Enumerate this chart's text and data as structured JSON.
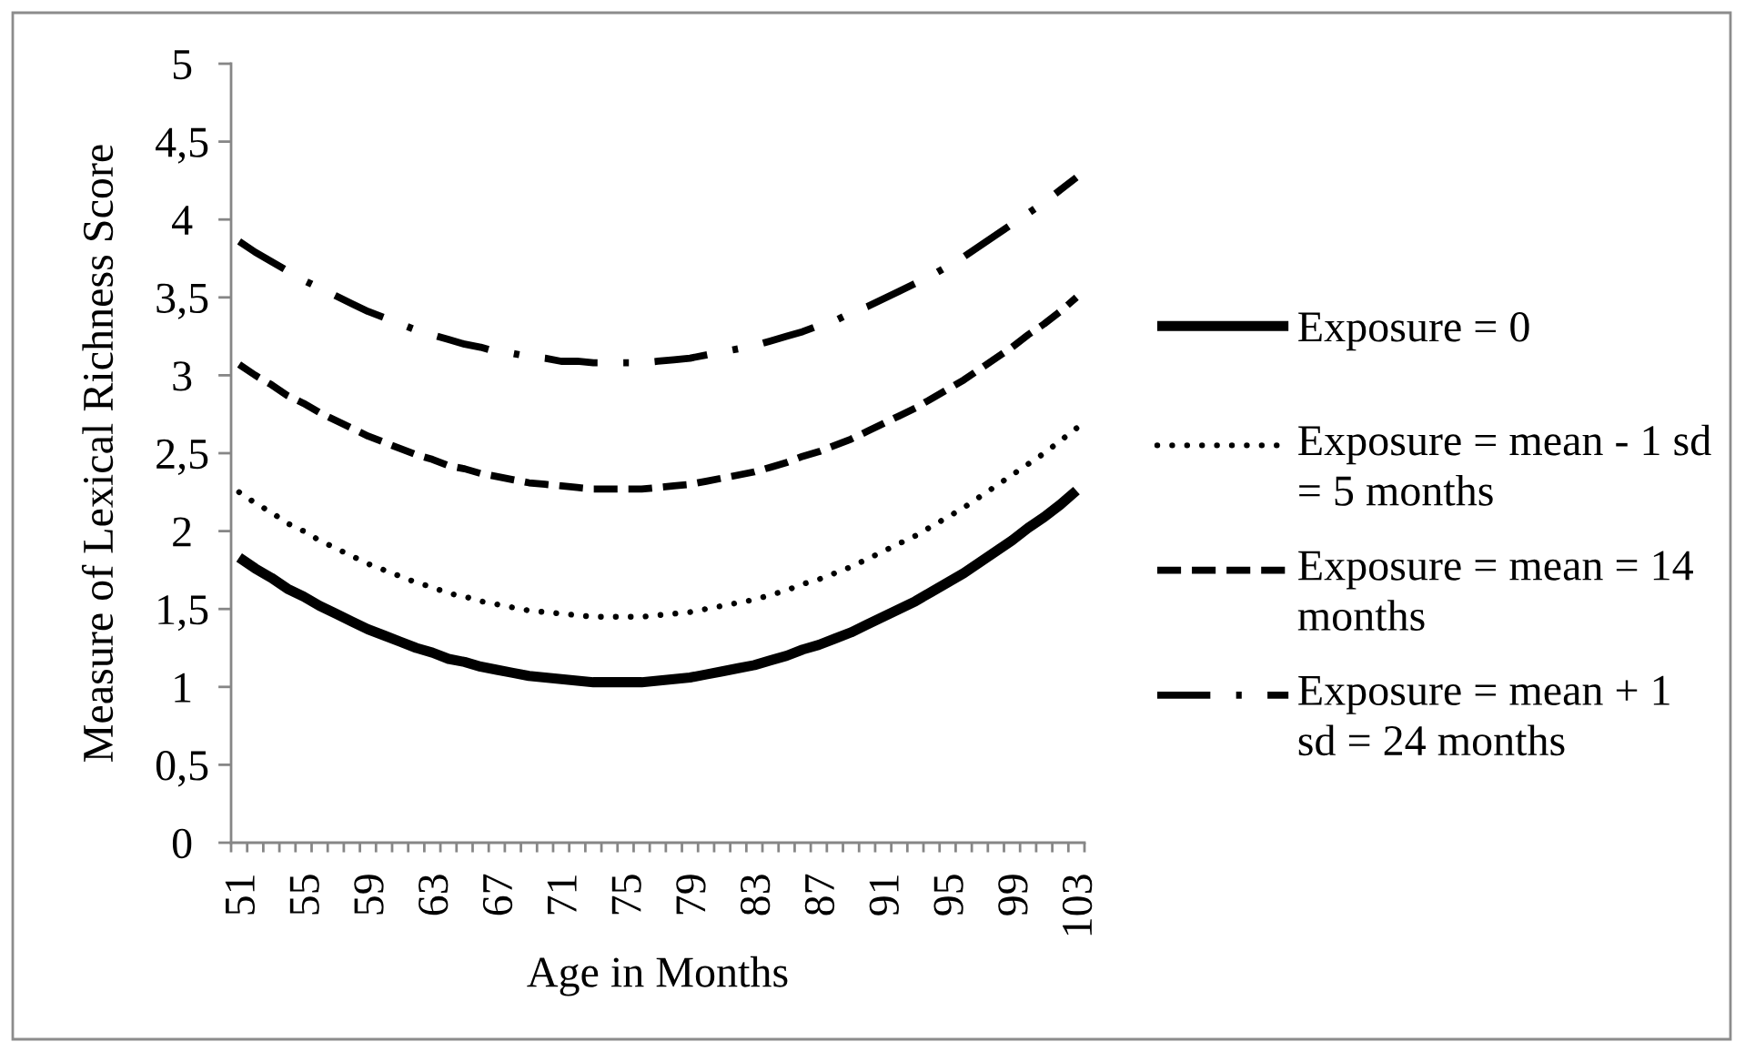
{
  "chart_data": {
    "type": "line",
    "xlabel": "Age in Months",
    "ylabel": "Measure of Lexical Richness Score",
    "categories": [
      "51",
      null,
      null,
      null,
      "55",
      null,
      null,
      null,
      "59",
      null,
      null,
      null,
      "63",
      null,
      null,
      null,
      "67",
      null,
      null,
      null,
      "71",
      null,
      null,
      null,
      "75",
      null,
      null,
      null,
      "79",
      null,
      null,
      null,
      "83",
      null,
      null,
      null,
      "87",
      null,
      null,
      null,
      "91",
      null,
      null,
      null,
      "95",
      null,
      null,
      null,
      "99",
      null,
      null,
      null,
      "103"
    ],
    "ylim": [
      0,
      5
    ],
    "yticks": [
      0,
      {
        "value": 0.5,
        "label": "0,5"
      },
      1,
      {
        "value": 1.5,
        "label": "1,5"
      },
      2,
      {
        "value": 2.5,
        "label": "2,5"
      },
      3,
      {
        "value": 3.5,
        "label": "3,5"
      },
      4,
      {
        "value": 4.5,
        "label": "4,5"
      },
      5
    ],
    "legend": "right",
    "series": [
      {
        "name": "Exposure = 0",
        "color": "#000000",
        "line_style": "solid",
        "values": [
          1.83,
          1.76,
          1.7,
          1.63,
          1.58,
          1.52,
          1.47,
          1.42,
          1.37,
          1.33,
          1.29,
          1.25,
          1.22,
          1.18,
          1.16,
          1.13,
          1.11,
          1.09,
          1.07,
          1.06,
          1.05,
          1.04,
          1.03,
          1.03,
          1.03,
          1.03,
          1.04,
          1.05,
          1.06,
          1.08,
          1.1,
          1.12,
          1.14,
          1.17,
          1.2,
          1.24,
          1.27,
          1.31,
          1.35,
          1.4,
          1.45,
          1.5,
          1.55,
          1.61,
          1.67,
          1.73,
          1.8,
          1.87,
          1.94,
          2.02,
          2.09,
          2.17,
          2.26
        ]
      },
      {
        "name": "Exposure = mean - 1 sd = 5 months",
        "color": "#000000",
        "line_style": "dotted",
        "values": [
          2.25,
          2.18,
          2.12,
          2.05,
          2.0,
          1.94,
          1.89,
          1.84,
          1.79,
          1.75,
          1.71,
          1.67,
          1.64,
          1.6,
          1.58,
          1.55,
          1.53,
          1.51,
          1.49,
          1.48,
          1.47,
          1.46,
          1.45,
          1.45,
          1.45,
          1.45,
          1.46,
          1.47,
          1.48,
          1.5,
          1.52,
          1.54,
          1.56,
          1.59,
          1.62,
          1.66,
          1.69,
          1.73,
          1.77,
          1.82,
          1.87,
          1.92,
          1.97,
          2.03,
          2.09,
          2.15,
          2.22,
          2.29,
          2.36,
          2.43,
          2.5,
          2.58,
          2.66
        ]
      },
      {
        "name": "Exposure = mean = 14 months",
        "color": "#000000",
        "line_style": "dashed",
        "values": [
          3.07,
          3.0,
          2.94,
          2.87,
          2.82,
          2.76,
          2.71,
          2.66,
          2.61,
          2.57,
          2.53,
          2.49,
          2.46,
          2.42,
          2.4,
          2.37,
          2.35,
          2.33,
          2.31,
          2.3,
          2.29,
          2.28,
          2.27,
          2.27,
          2.27,
          2.27,
          2.28,
          2.29,
          2.3,
          2.32,
          2.34,
          2.36,
          2.38,
          2.41,
          2.44,
          2.48,
          2.51,
          2.55,
          2.59,
          2.64,
          2.69,
          2.74,
          2.79,
          2.85,
          2.91,
          2.97,
          3.04,
          3.11,
          3.18,
          3.26,
          3.33,
          3.41,
          3.5
        ]
      },
      {
        "name": "Exposure = mean + 1 sd = 24 months",
        "color": "#000000",
        "line_style": "dashdot",
        "values": [
          3.86,
          3.79,
          3.73,
          3.67,
          3.61,
          3.56,
          3.51,
          3.46,
          3.41,
          3.37,
          3.33,
          3.29,
          3.26,
          3.23,
          3.2,
          3.18,
          3.15,
          3.14,
          3.12,
          3.11,
          3.09,
          3.09,
          3.08,
          3.08,
          3.08,
          3.08,
          3.09,
          3.1,
          3.11,
          3.13,
          3.15,
          3.17,
          3.19,
          3.22,
          3.25,
          3.28,
          3.32,
          3.35,
          3.4,
          3.44,
          3.49,
          3.54,
          3.59,
          3.64,
          3.7,
          3.76,
          3.83,
          3.9,
          3.97,
          4.04,
          4.11,
          4.19,
          4.27
        ]
      }
    ]
  }
}
